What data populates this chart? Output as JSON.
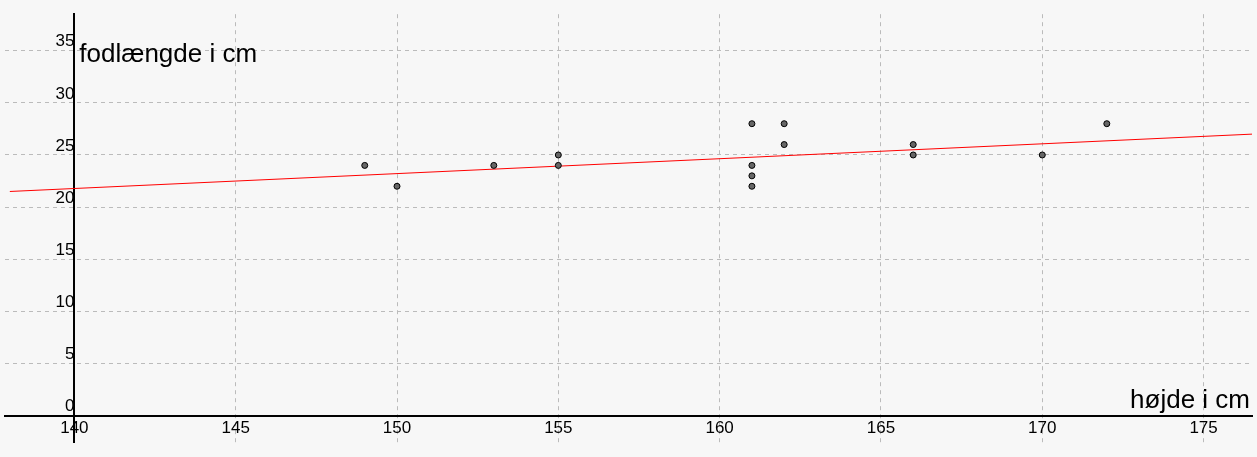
{
  "chart_data": {
    "type": "scatter",
    "xlabel": "højde i cm",
    "ylabel": "fodlængde i cm",
    "x": [
      149,
      150,
      153,
      155,
      155,
      161,
      161,
      161,
      161,
      162,
      162,
      166,
      166,
      170,
      172
    ],
    "series": [
      {
        "marker": "circle",
        "color": "#666666",
        "values": [
          24,
          22,
          24,
          25,
          24,
          28,
          24,
          23,
          22,
          28,
          26,
          26,
          25,
          25,
          28
        ]
      },
      {
        "type": "line",
        "color": "#ff0000",
        "x": [
          138,
          176.5
        ],
        "values": [
          21.5,
          27.0
        ]
      }
    ],
    "xlim": [
      137.85,
      176.5
    ],
    "ylim": [
      -2.6,
      38.5
    ],
    "xticks": [
      140,
      145,
      150,
      155,
      160,
      165,
      170,
      175
    ],
    "yticks": [
      0,
      5,
      10,
      15,
      20,
      25,
      30,
      35
    ],
    "grid": true,
    "legend": false,
    "line_style": "solid"
  }
}
